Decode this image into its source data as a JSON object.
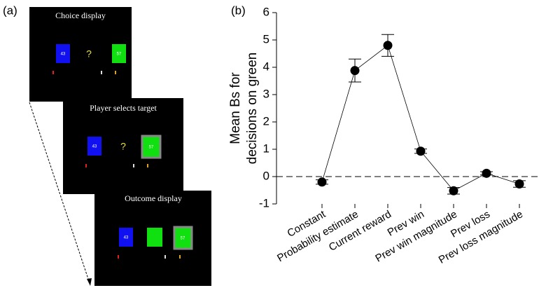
{
  "panel_labels": [
    "(a)",
    "(b)"
  ],
  "screens": [
    {
      "title": "Choice display",
      "left_number": "43",
      "symbol": "?",
      "right_number": "57"
    },
    {
      "title": "Player selects target",
      "left_number": "43",
      "symbol": "?",
      "right_number": "57"
    },
    {
      "title": "Outcome display",
      "left_number": "43",
      "right_number": "57"
    }
  ],
  "chart_data": {
    "type": "line",
    "ylabel": [
      "Mean Bs for",
      "decisions on green"
    ],
    "categories": [
      "Constant",
      "Probability estimate",
      "Current reward",
      "Prev win",
      "Prev win magnitude",
      "Prev loss",
      "Prev loss magnitude"
    ],
    "values": [
      -0.2,
      3.88,
      4.8,
      0.93,
      -0.52,
      0.12,
      -0.27
    ],
    "errors": [
      0.08,
      0.42,
      0.4,
      0.08,
      0.12,
      0.06,
      0.12
    ],
    "color": "#000000",
    "ylim": [
      -1,
      6
    ],
    "yticks": [
      -1,
      0,
      1,
      2,
      3,
      4,
      5,
      6
    ],
    "reference_line": 0
  }
}
